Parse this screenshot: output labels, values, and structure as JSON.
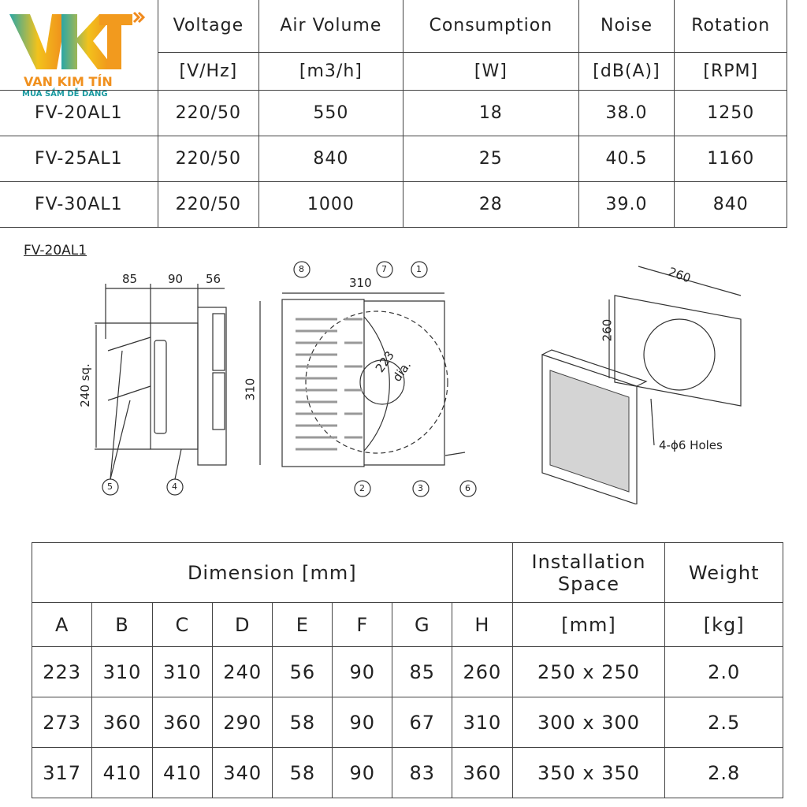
{
  "logo": {
    "brand": "VAN KIM TÍN",
    "tagline": "MUA SẮM DỄ DÀNG",
    "mark": "VKT"
  },
  "spec_table": {
    "headers": [
      "Voltage",
      "Air Volume",
      "Consumption",
      "Noise",
      "Rotation"
    ],
    "units": [
      "[V/Hz]",
      "[m3/h]",
      "[W]",
      "[dB(A)]",
      "[RPM]"
    ],
    "rows": [
      [
        "FV-20AL1",
        "220/50",
        "550",
        "18",
        "38.0",
        "1250"
      ],
      [
        "FV-25AL1",
        "220/50",
        "840",
        "25",
        "40.5",
        "1160"
      ],
      [
        "FV-30AL1",
        "220/50",
        "1000",
        "28",
        "39.0",
        "840"
      ]
    ]
  },
  "diagram": {
    "model": "FV-20AL1",
    "side_dims": [
      "85",
      "90",
      "56"
    ],
    "side_height": "240 sq.",
    "front_width": "310",
    "front_height": "310",
    "fan_dia": "223",
    "dia_label": "dia.",
    "callouts": [
      "1",
      "2",
      "3",
      "4",
      "5",
      "6",
      "7",
      "8"
    ],
    "iso_dims": [
      "260",
      "260"
    ],
    "holes": "4-ϕ6 Holes"
  },
  "dim_table": {
    "dimension_header": "Dimension [mm]",
    "install_header": "Installation Space",
    "weight_header": "Weight",
    "letters": [
      "A",
      "B",
      "C",
      "D",
      "E",
      "F",
      "G",
      "H"
    ],
    "install_unit": "[mm]",
    "weight_unit": "[kg]",
    "rows": [
      [
        "223",
        "310",
        "310",
        "240",
        "56",
        "90",
        "85",
        "260",
        "250 x 250",
        "2.0"
      ],
      [
        "273",
        "360",
        "360",
        "290",
        "58",
        "90",
        "67",
        "310",
        "300 x 300",
        "2.5"
      ],
      [
        "317",
        "410",
        "410",
        "340",
        "58",
        "90",
        "83",
        "360",
        "350 x 350",
        "2.8"
      ]
    ]
  }
}
